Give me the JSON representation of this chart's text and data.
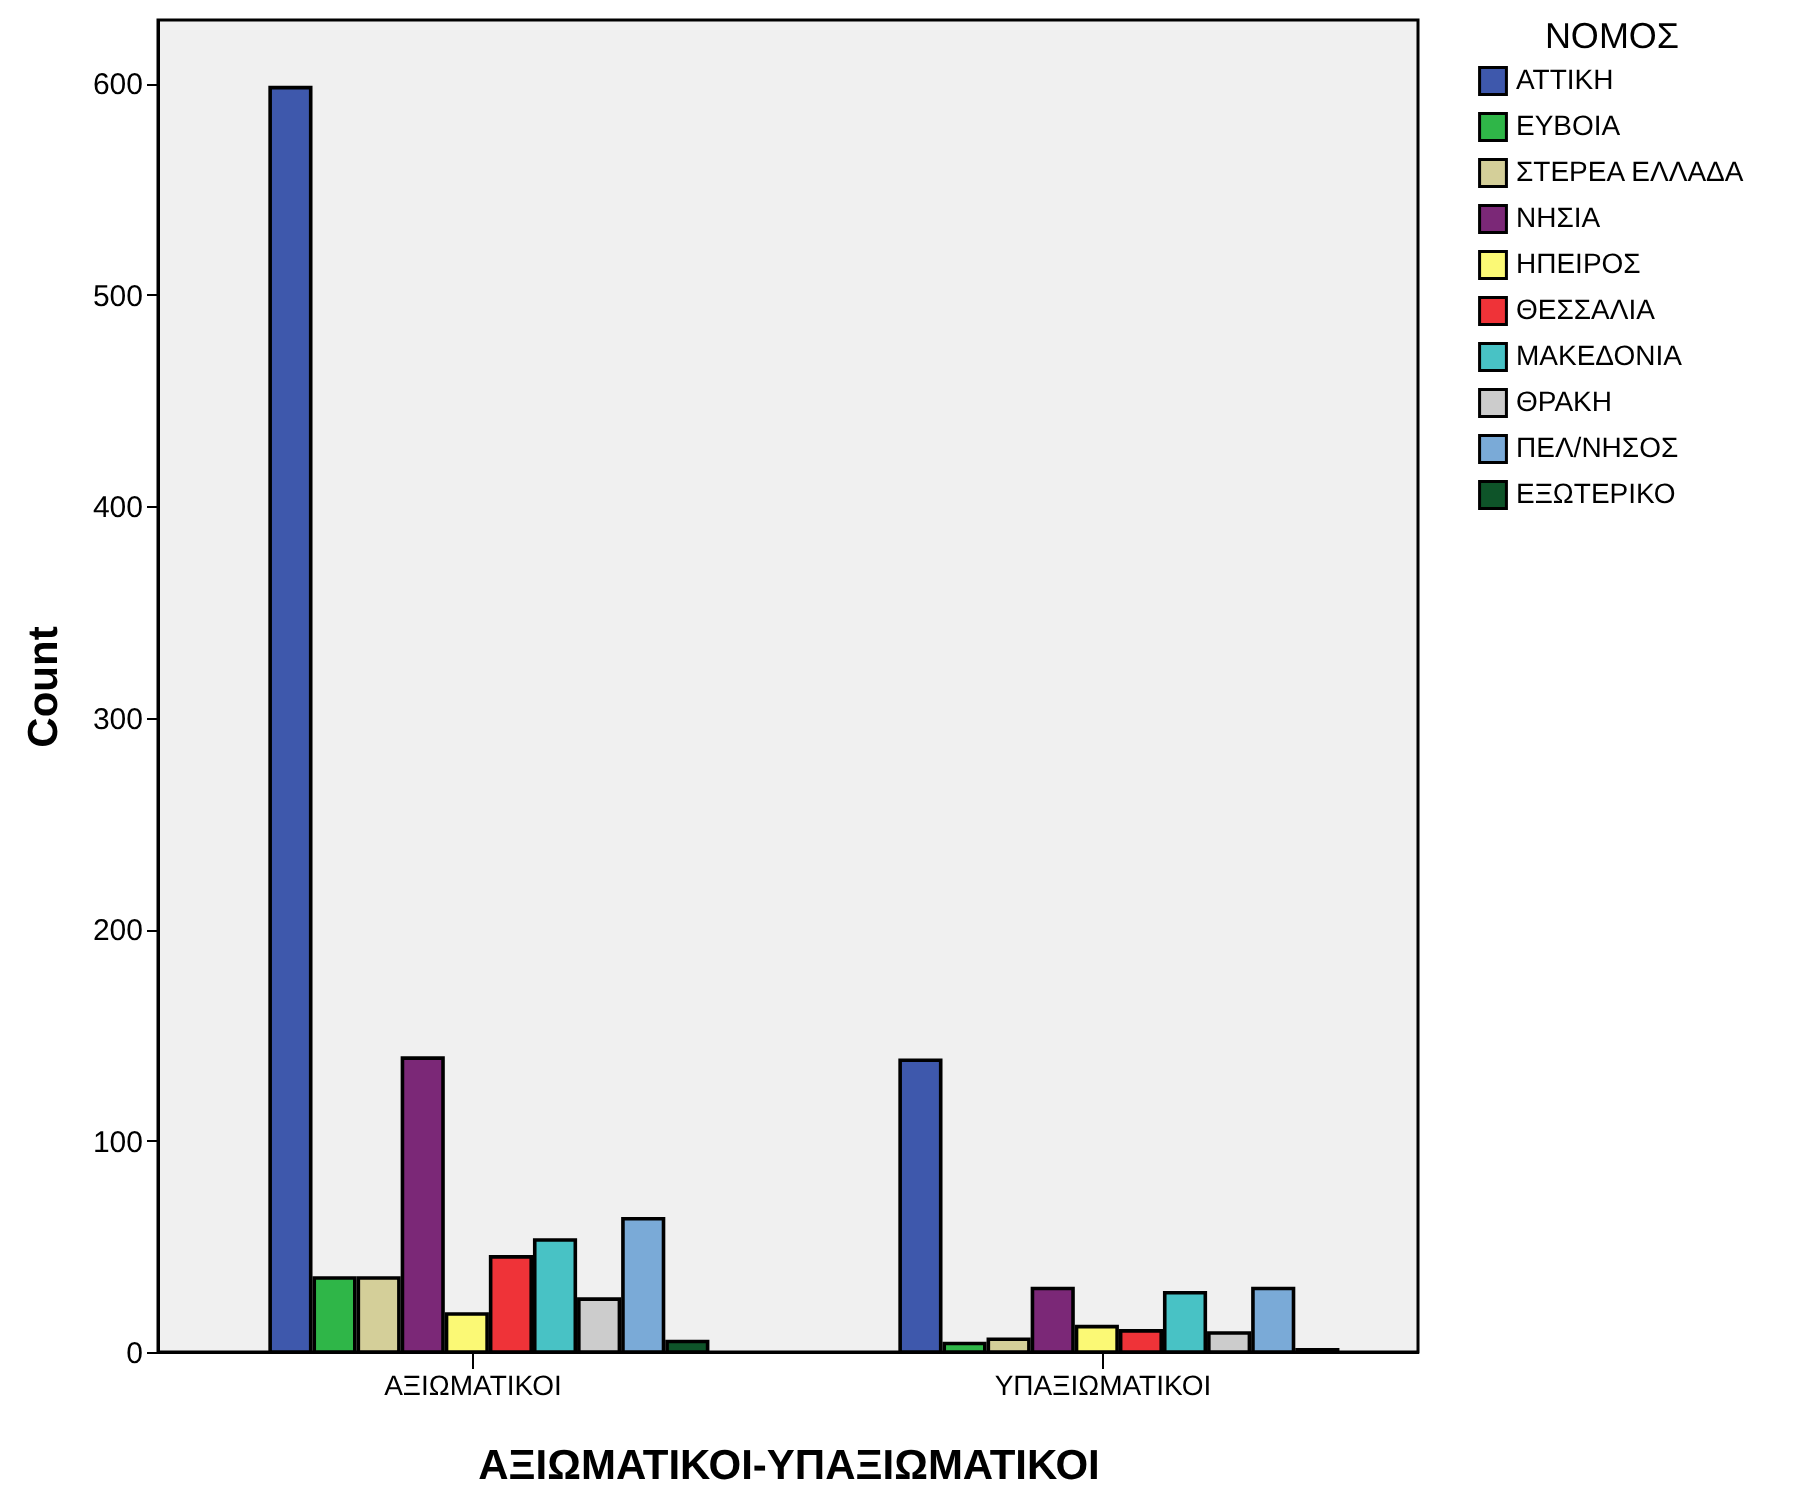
{
  "chart_data": {
    "type": "bar",
    "xlabel": "ΑΞΙΩΜΑΤΙΚΟΙ-ΥΠΑΞΙΩΜΑΤΙΚΟΙ",
    "ylabel": "Count",
    "legend_title": "ΝΟΜΟΣ",
    "legend": "right",
    "grid": false,
    "categories": [
      "ΑΞΙΩΜΑΤΙΚΟΙ",
      "ΥΠΑΞΙΩΜΑΤΙΚΟΙ"
    ],
    "ylim": [
      0,
      630
    ],
    "yticks": [
      0,
      100,
      200,
      300,
      400,
      500,
      600
    ],
    "series": [
      {
        "name": "ΑΤΤΙΚΗ",
        "color": "#3e58ac",
        "values": [
          598,
          138
        ]
      },
      {
        "name": "ΕΥΒΟΙΑ",
        "color": "#2fb648",
        "values": [
          35,
          4
        ]
      },
      {
        "name": "ΣΤΕΡΕΑ ΕΛΛΑΔΑ",
        "color": "#d4cf99",
        "values": [
          35,
          6
        ]
      },
      {
        "name": "ΝΗΣΙΑ",
        "color": "#7b2877",
        "values": [
          139,
          30
        ]
      },
      {
        "name": "ΗΠΕΙΡΟΣ",
        "color": "#fbf975",
        "values": [
          18,
          12
        ]
      },
      {
        "name": "ΘΕΣΣΑΛΙΑ",
        "color": "#ef3338",
        "values": [
          45,
          10
        ]
      },
      {
        "name": "ΜΑΚΕΔΟΝΙΑ",
        "color": "#48c2c5",
        "values": [
          53,
          28
        ]
      },
      {
        "name": "ΘΡΑΚΗ",
        "color": "#cccccc",
        "values": [
          25,
          9
        ]
      },
      {
        "name": "ΠΕΛ/ΝΗΣΟΣ",
        "color": "#7aaad7",
        "values": [
          63,
          30
        ]
      },
      {
        "name": "ΕΞΩΤΕΡΙΚΟ",
        "color": "#0e5429",
        "values": [
          5,
          1
        ]
      }
    ]
  }
}
